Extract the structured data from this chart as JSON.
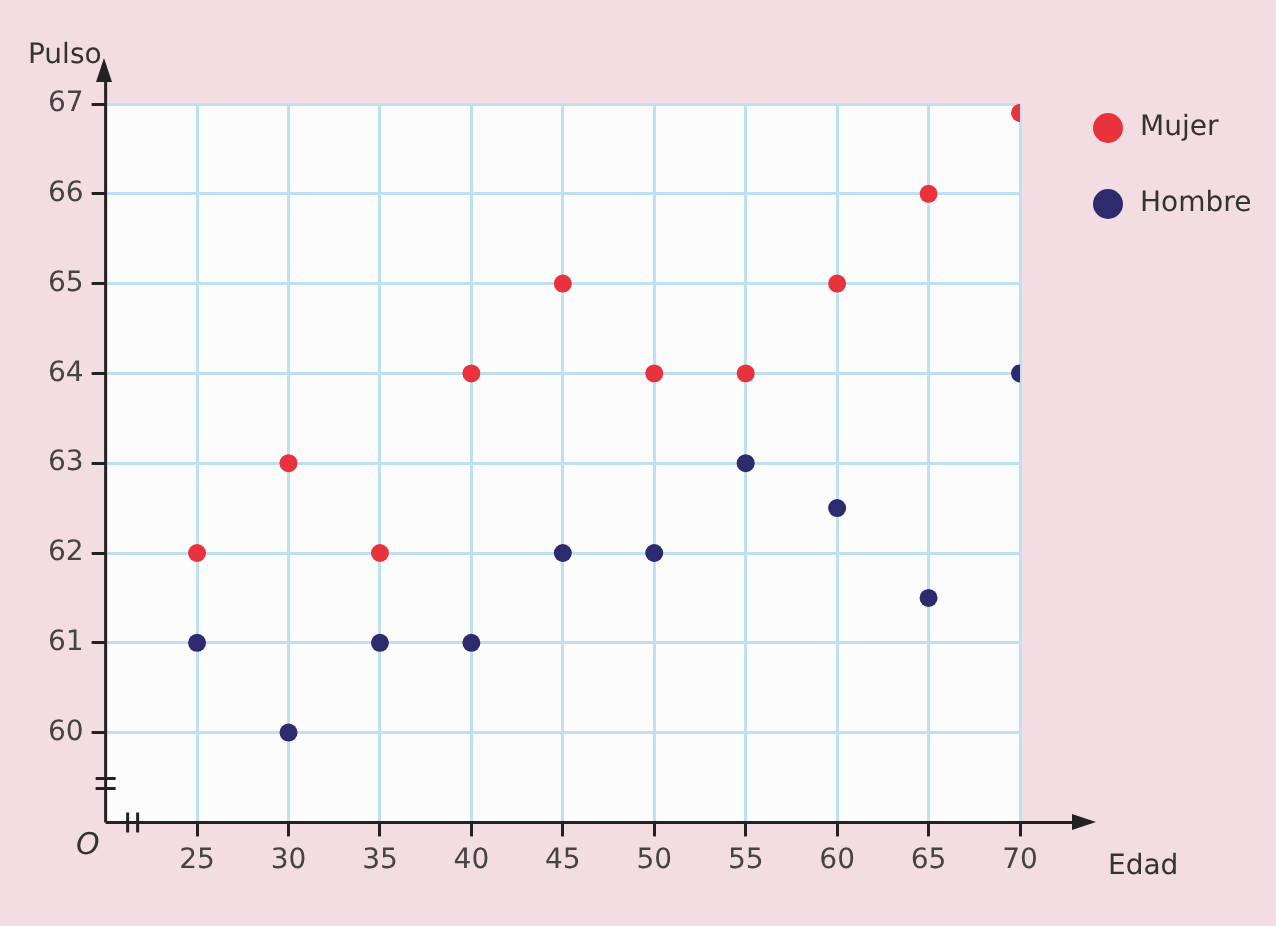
{
  "chart_data": {
    "type": "scatter",
    "xlabel": "Edad",
    "ylabel": "Pulso",
    "x": [
      25,
      30,
      35,
      40,
      45,
      50,
      55,
      60,
      65,
      70
    ],
    "series": [
      {
        "name": "Mujer",
        "color": "#e8323c",
        "values": [
          62,
          63,
          62,
          64,
          65,
          64,
          64,
          65,
          66,
          66.9
        ]
      },
      {
        "name": "Hombre",
        "color": "#2e2a6e",
        "values": [
          61,
          60,
          61,
          61,
          62,
          62,
          63,
          62.5,
          61.5,
          64
        ]
      }
    ],
    "xlim": [
      20,
      70
    ],
    "ylim": [
      59,
      67
    ],
    "xticks": [
      25,
      30,
      35,
      40,
      45,
      50,
      55,
      60,
      65,
      70
    ],
    "yticks": [
      60,
      61,
      62,
      63,
      64,
      65,
      66,
      67
    ],
    "grid": true,
    "legend": "top right",
    "marker": "circle",
    "annotations": [
      "O"
    ]
  }
}
